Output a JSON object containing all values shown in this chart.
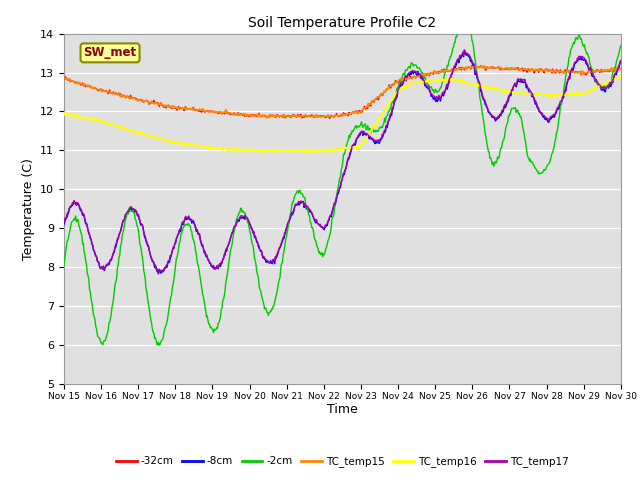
{
  "title": "Soil Temperature Profile C2",
  "xlabel": "Time",
  "ylabel": "Temperature (C)",
  "ylim": [
    5.0,
    14.0
  ],
  "yticks": [
    5.0,
    6.0,
    7.0,
    8.0,
    9.0,
    10.0,
    11.0,
    12.0,
    13.0,
    14.0
  ],
  "plot_bg_color": "#e0e0e0",
  "series_colors": {
    "neg32cm": "#ff0000",
    "neg8cm": "#0000ff",
    "neg2cm": "#00cc00",
    "TC_temp15": "#ff8800",
    "TC_temp16": "#ffff00",
    "TC_temp17": "#aa00aa"
  },
  "legend_label": "SW_met",
  "legend_box_facecolor": "#ffff99",
  "legend_box_edgecolor": "#888800",
  "x_start": 15,
  "x_end": 30,
  "x_ticks": [
    15,
    16,
    17,
    18,
    19,
    20,
    21,
    22,
    23,
    24,
    25,
    26,
    27,
    28,
    29,
    30
  ],
  "x_tick_labels": [
    "Nov 15",
    "Nov 16",
    "Nov 17",
    "Nov 18",
    "Nov 19",
    "Nov 20",
    "Nov 21",
    "Nov 22",
    "Nov 23",
    "Nov 24",
    "Nov 25",
    "Nov 26",
    "Nov 27",
    "Nov 28",
    "Nov 29",
    "Nov 30"
  ]
}
